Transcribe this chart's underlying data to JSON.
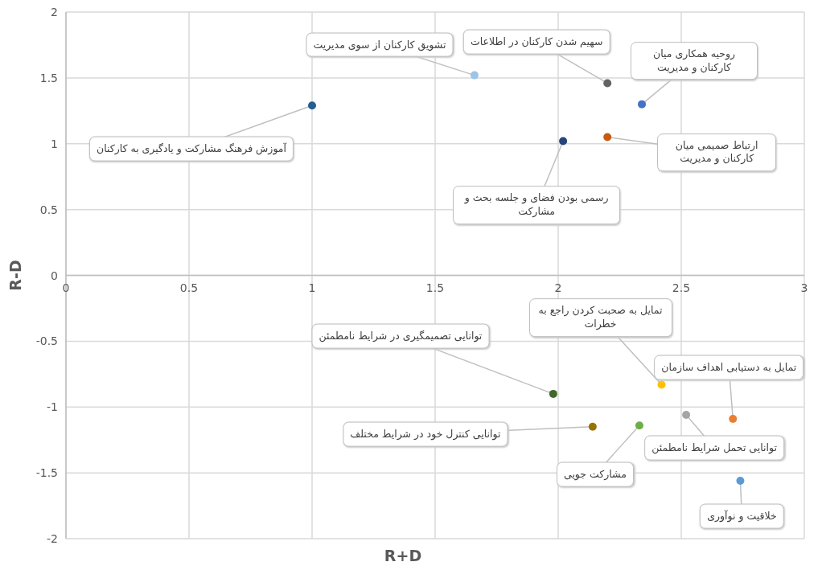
{
  "chart_data": {
    "type": "scatter",
    "xlabel": "R+D",
    "ylabel": "R-D",
    "xlim": [
      0,
      3
    ],
    "ylim": [
      -2,
      2
    ],
    "xticks": [
      0,
      0.5,
      1,
      1.5,
      2,
      2.5,
      3
    ],
    "yticks": [
      -2,
      -1.5,
      -1,
      -0.5,
      0,
      0.5,
      1,
      1.5,
      2
    ],
    "grid": true,
    "marker": "circle",
    "x": [
      1.0,
      1.66,
      2.2,
      2.34,
      2.2,
      2.02,
      2.42,
      1.98,
      2.71,
      2.14,
      2.33,
      2.52,
      2.74
    ],
    "values": [
      1.29,
      1.52,
      1.46,
      1.3,
      1.05,
      1.02,
      -0.83,
      -0.9,
      -1.09,
      -1.15,
      -1.14,
      -1.06,
      -1.56
    ],
    "colors": [
      "#255e91",
      "#9dc3e6",
      "#636363",
      "#4472c4",
      "#c55a11",
      "#264478",
      "#ffc000",
      "#43682b",
      "#ed7d31",
      "#997300",
      "#70ad47",
      "#a5a5a5",
      "#5b9bd5"
    ],
    "annotations": [
      {
        "text": "آموزش فرهنگ مشارکت و یادگیری به کارکنان",
        "x": 1.0,
        "y": 1.29
      },
      {
        "text": "تشویق کارکنان از سوی مدیریت",
        "x": 1.66,
        "y": 1.52
      },
      {
        "text": "سهیم شدن کارکنان در اطلاعات",
        "x": 2.2,
        "y": 1.46
      },
      {
        "text": "روحیه همکاری میان کارکنان و مدیریت",
        "x": 2.34,
        "y": 1.3
      },
      {
        "text": "ارتباط صمیمی میان کارکنان و مدیریت",
        "x": 2.2,
        "y": 1.05
      },
      {
        "text": "رسمی بودن فضای و جلسه بحث و مشارکت",
        "x": 2.02,
        "y": 1.02
      },
      {
        "text": "تمایل به صحبت کردن راجع به خطرات",
        "x": 2.42,
        "y": -0.83
      },
      {
        "text": "توانایی تصمیمگیری در شرایط نامطمئن",
        "x": 1.98,
        "y": -0.9
      },
      {
        "text": "تمایل به دستیابی اهداف سازمان",
        "x": 2.71,
        "y": -1.09
      },
      {
        "text": "توانایی کنترل خود در شرایط مختلف",
        "x": 2.14,
        "y": -1.15
      },
      {
        "text": "مشارکت جویی",
        "x": 2.33,
        "y": -1.14
      },
      {
        "text": "توانایی تحمل شرایط نامطمئن",
        "x": 2.52,
        "y": -1.06
      },
      {
        "text": "خلاقیت و نوآوری",
        "x": 2.74,
        "y": -1.56
      }
    ]
  }
}
